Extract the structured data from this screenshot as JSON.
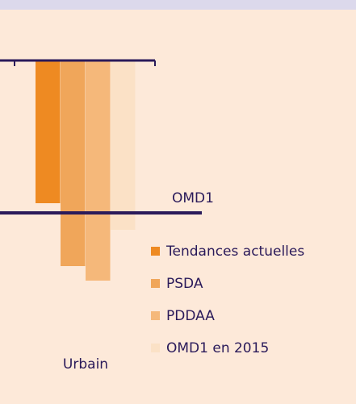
{
  "chart_data": {
    "type": "bar",
    "categories": [
      "Urbain"
    ],
    "series": [
      {
        "name": "Tendances actuelles",
        "color": "#ee8a22",
        "values": [
          59
        ]
      },
      {
        "name": "PSDA",
        "color": "#f0a65a",
        "values": [
          85
        ]
      },
      {
        "name": "PDDAA",
        "color": "#f5b87a",
        "values": [
          91
        ]
      },
      {
        "name": "OMD1 en 2015",
        "color": "#fbe1c6",
        "values": [
          70
        ]
      }
    ],
    "ylim": [
      0,
      100
    ],
    "inverted": true,
    "reference_line": {
      "label": "OMD1",
      "value": 63
    }
  }
}
